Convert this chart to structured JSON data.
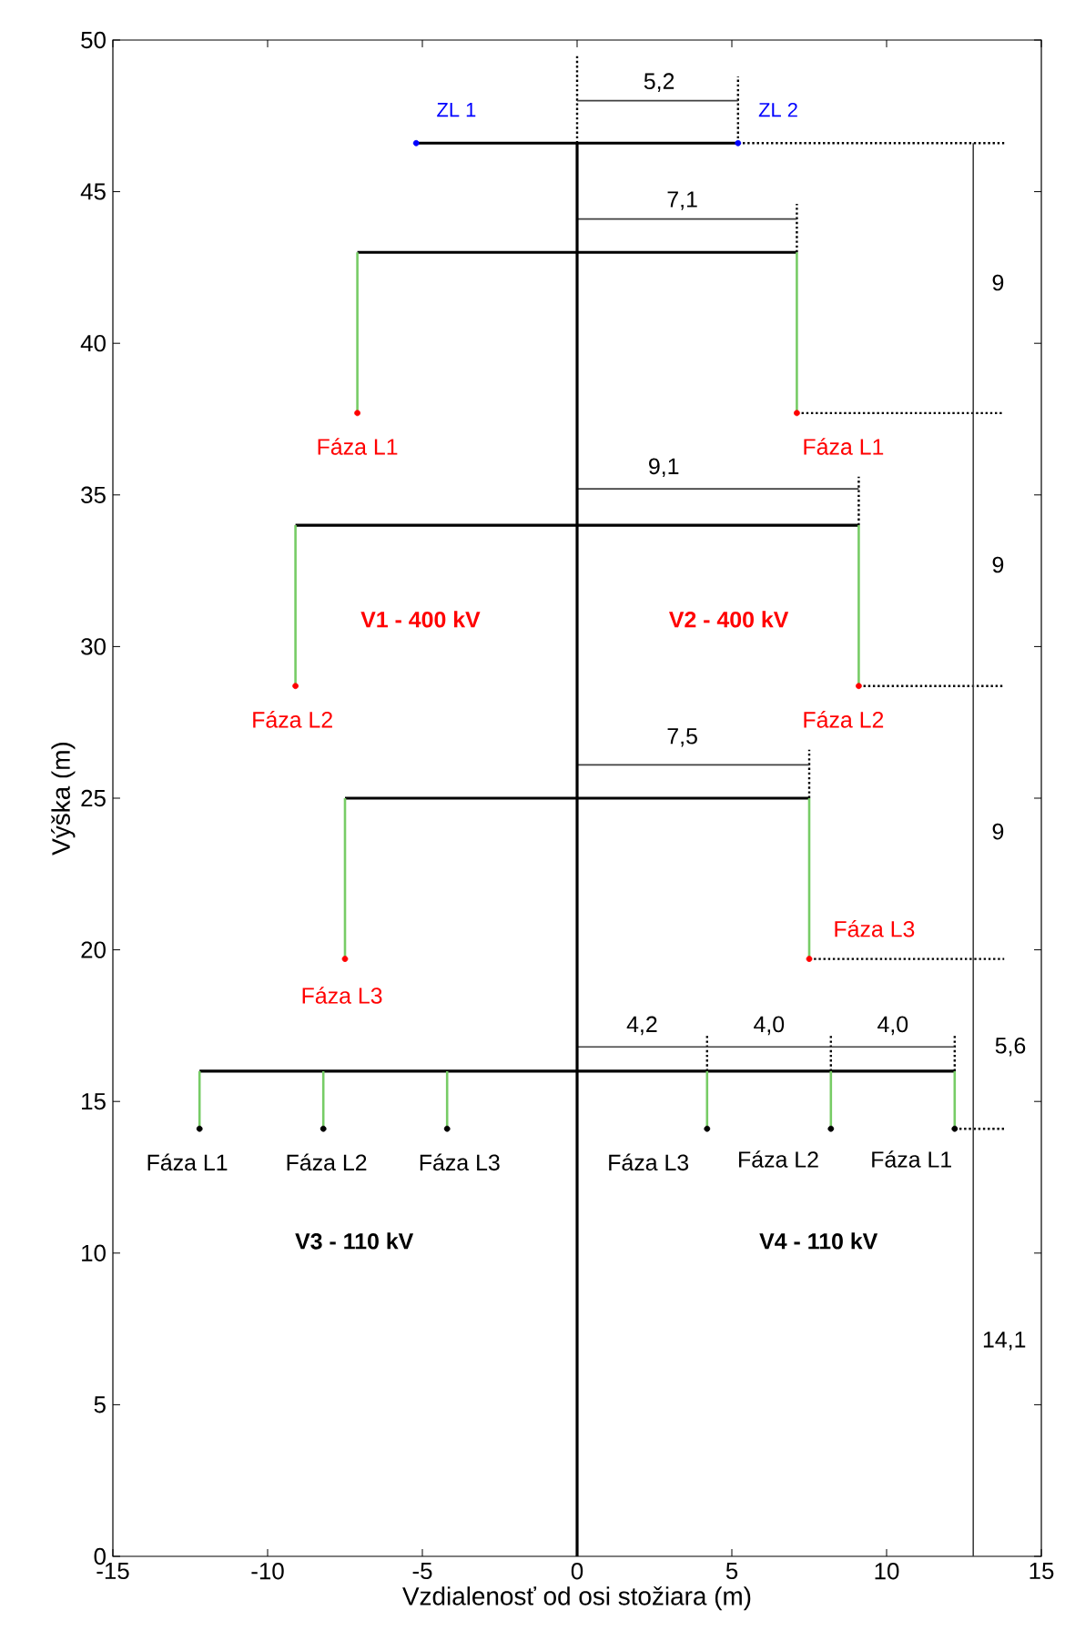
{
  "chart_data": {
    "type": "line",
    "xlabel": "Vzdialenosť od osi stožiara (m)",
    "ylabel": "Výška (m)",
    "xlim": [
      -15,
      15
    ],
    "ylim": [
      0,
      50
    ],
    "xticks": [
      -15,
      -10,
      -5,
      0,
      5,
      10,
      15
    ],
    "yticks": [
      0,
      5,
      10,
      15,
      20,
      25,
      30,
      35,
      40,
      45,
      50
    ],
    "series": [
      {
        "color": "#000000",
        "line_style": "solid",
        "x": [
          -5.2,
          5.2,
          null,
          -7.1,
          7.1,
          null,
          -9.1,
          9.1,
          null,
          -7.5,
          7.5,
          null,
          -12.2,
          12.2
        ],
        "values": [
          46.6,
          46.6,
          null,
          43,
          43,
          null,
          34,
          34,
          null,
          25,
          25,
          null,
          16,
          16
        ]
      },
      {
        "color": "#000000",
        "line_style": "dotted",
        "x": [
          0,
          0,
          null,
          5.2,
          5.2,
          null,
          7.1,
          7.1,
          null,
          9.1,
          9.1,
          null,
          7.5,
          7.5,
          null,
          4.2,
          4.2,
          null,
          8.2,
          8.2,
          null,
          12.2,
          12.2,
          null,
          5.2,
          13.8,
          null,
          7.1,
          13.8,
          null,
          9.1,
          13.8,
          null,
          7.5,
          13.8,
          null,
          12.2,
          13.8
        ],
        "values": [
          46.6,
          49.5,
          null,
          46.6,
          48.8,
          null,
          43,
          44.6,
          null,
          34,
          35.6,
          null,
          25,
          26.6,
          null,
          16,
          17.2,
          null,
          16,
          17.2,
          null,
          16,
          17.2,
          null,
          46.6,
          46.6,
          null,
          37.7,
          37.7,
          null,
          28.7,
          28.7,
          null,
          19.7,
          19.7,
          null,
          14.1,
          14.1
        ]
      },
      {
        "color": "#404040",
        "line_style": "solid",
        "x": [
          0,
          5.2
        ],
        "values": [
          48,
          48
        ]
      },
      {
        "color": "#404040",
        "line_style": "solid",
        "x": [
          0,
          7.1
        ],
        "values": [
          44.1,
          44.1
        ]
      },
      {
        "color": "#404040",
        "line_style": "solid",
        "x": [
          0,
          9.1
        ],
        "values": [
          35.2,
          35.2
        ]
      },
      {
        "color": "#404040",
        "line_style": "solid",
        "x": [
          0,
          7.5
        ],
        "values": [
          26.1,
          26.1
        ]
      },
      {
        "color": "#404040",
        "line_style": "solid",
        "x": [
          0,
          4.2,
          null,
          4.2,
          8.2,
          null,
          8.2,
          12.2
        ],
        "values": [
          16.8,
          16.8,
          null,
          16.8,
          16.8,
          null,
          16.8,
          16.8
        ]
      },
      {
        "color": "#77cc66",
        "line_style": "solid",
        "x": [
          -7.1,
          -7.1,
          null,
          7.1,
          7.1,
          null,
          -9.1,
          -9.1,
          null,
          9.1,
          9.1,
          null,
          -7.5,
          -7.5,
          null,
          7.5,
          7.5,
          null,
          -12.2,
          -12.2,
          null,
          -8.2,
          -8.2,
          null,
          -4.2,
          -4.2,
          null,
          4.2,
          4.2,
          null,
          8.2,
          8.2,
          null,
          12.2,
          12.2
        ],
        "values": [
          43,
          37.7,
          null,
          43,
          37.7,
          null,
          34,
          28.7,
          null,
          34,
          28.7,
          null,
          25,
          19.7,
          null,
          25,
          19.7,
          null,
          16,
          14.1,
          null,
          16,
          14.1,
          null,
          16,
          14.1,
          null,
          16,
          14.1,
          null,
          16,
          14.1,
          null,
          16,
          14.1
        ]
      },
      {
        "color": "#404040",
        "line_style": "solid",
        "x": [
          12.8,
          12.8
        ],
        "values": [
          0,
          46.6
        ]
      },
      {
        "color": "#000000",
        "line_style": "solid",
        "x": [
          0,
          0
        ],
        "values": [
          0,
          46.6
        ]
      },
      {
        "type": "scatter",
        "name": "ZL 1",
        "color": "#0000ff",
        "marker": "circle",
        "x": [
          -5.2
        ],
        "values": [
          46.6
        ]
      },
      {
        "type": "scatter",
        "name": "ZL 2",
        "color": "#0000ff",
        "marker": "circle",
        "x": [
          5.2
        ],
        "values": [
          46.6
        ]
      },
      {
        "type": "scatter",
        "color": "#ff0000",
        "marker": "circle",
        "x": [
          -7.1,
          -9.1,
          -7.5,
          7.1,
          9.1,
          7.5
        ],
        "values": [
          37.7,
          28.7,
          19.7,
          37.7,
          28.7,
          19.7
        ]
      },
      {
        "type": "scatter",
        "color": "#000000",
        "marker": "circle",
        "x": [
          -12.2,
          -8.2,
          -4.2,
          4.2,
          8.2,
          12.2
        ],
        "values": [
          14.1,
          14.1,
          14.1,
          14.1,
          14.1,
          14.1
        ]
      }
    ],
    "annotations": [
      "Fáza L1",
      "Fáza L1",
      "Fáza L2",
      "Fáza L2",
      "Fáza L3",
      "Fáza L3",
      "Fáza L1",
      "Fáza L2",
      "Fáza L3",
      "Fáza L3",
      "Fáza L2",
      "Fáza L1",
      "5,2",
      "7,1",
      "9,1",
      "7,5",
      "4,2",
      "4,0",
      "4,0",
      "9",
      "9",
      "9",
      "5,6",
      "14,1",
      "V1 - 400 kV",
      "V2 - 400 kV",
      "V3 - 110 kV",
      "V4 - 110 kV"
    ]
  }
}
